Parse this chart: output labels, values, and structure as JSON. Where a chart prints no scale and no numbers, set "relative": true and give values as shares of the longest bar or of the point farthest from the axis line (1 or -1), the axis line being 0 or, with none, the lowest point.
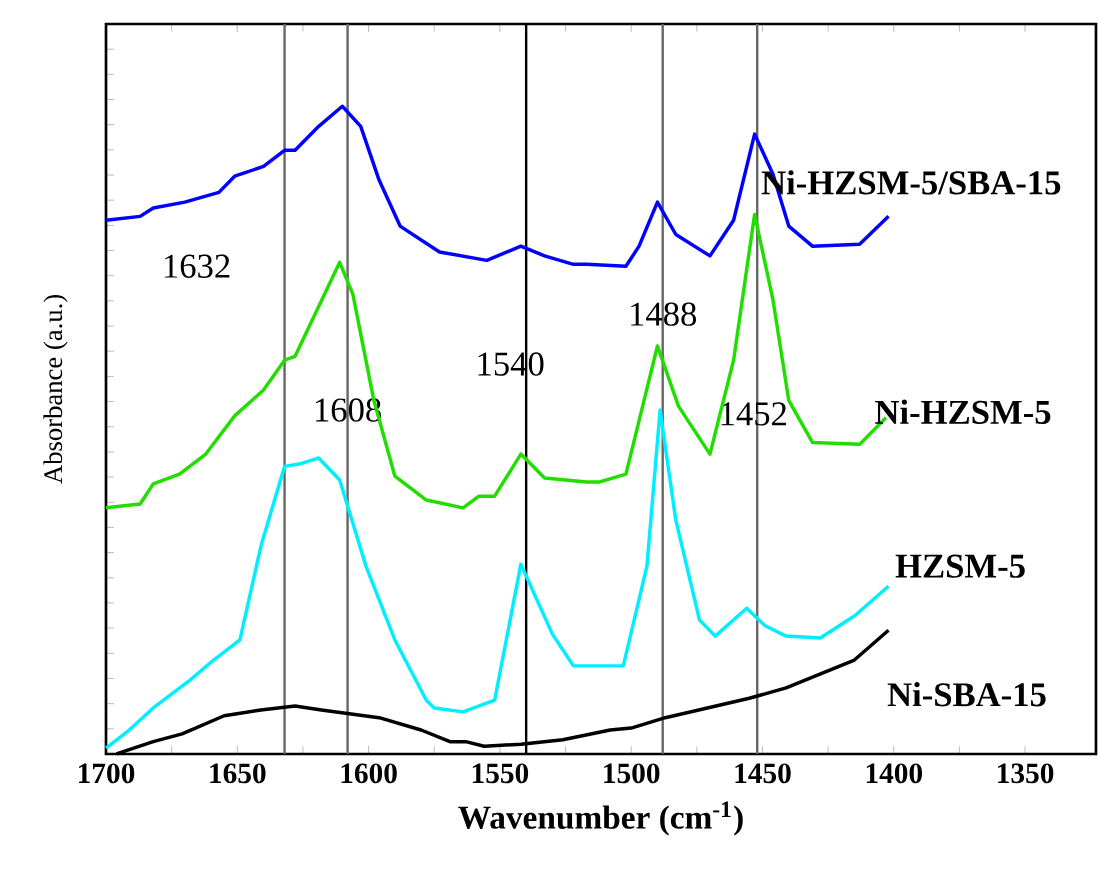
{
  "chart_data": {
    "type": "line",
    "relative": true,
    "xlabel": "Wavenumber (cm$^{-1}$)",
    "ylabel": "Absorbance (a.u.)",
    "xlim": [
      1700,
      1323
    ],
    "xticks": [
      1700,
      1650,
      1600,
      1550,
      1500,
      1450,
      1400,
      1350
    ],
    "grid": false,
    "marker": "none",
    "line_style": "solid",
    "ref_lines": [
      {
        "axis": "x",
        "value": 1632,
        "label": "1632",
        "color": "#666666"
      },
      {
        "axis": "x",
        "value": 1608,
        "label": "1608",
        "color": "#666666"
      },
      {
        "axis": "x",
        "value": 1540,
        "label": "1540",
        "color": "#000000"
      },
      {
        "axis": "x",
        "value": 1488,
        "label": "1488",
        "color": "#666666"
      },
      {
        "axis": "x",
        "value": 1452,
        "label": "1452",
        "color": "#666666"
      }
    ],
    "series": [
      {
        "name": "Ni-HZSM-5/SBA-15",
        "color": "#0000ff",
        "x": [
          1700,
          1687,
          1682,
          1670,
          1657,
          1651,
          1640,
          1632,
          1628,
          1619,
          1610,
          1603,
          1596,
          1588,
          1573,
          1555,
          1542,
          1533,
          1522,
          1517,
          1502,
          1497,
          1490,
          1483,
          1470,
          1461,
          1453,
          1446,
          1440,
          1431,
          1413,
          1402
        ],
        "values": [
          0.824,
          0.83,
          0.843,
          0.852,
          0.867,
          0.892,
          0.907,
          0.932,
          0.932,
          0.969,
          1.0,
          0.969,
          0.886,
          0.815,
          0.775,
          0.762,
          0.784,
          0.769,
          0.756,
          0.756,
          0.753,
          0.784,
          0.852,
          0.802,
          0.769,
          0.824,
          0.957,
          0.895,
          0.815,
          0.784,
          0.787,
          0.83
        ]
      },
      {
        "name": "Ni-HZSM-5",
        "color": "#22dd00",
        "x": [
          1700,
          1687,
          1682,
          1672,
          1662,
          1651,
          1640,
          1632,
          1628,
          1619,
          1611,
          1606,
          1598,
          1590,
          1578,
          1564,
          1558,
          1552,
          1542,
          1533,
          1517,
          1512,
          1502,
          1490,
          1482,
          1470,
          1461,
          1453,
          1446,
          1440,
          1431,
          1413,
          1403
        ],
        "values": [
          0.38,
          0.386,
          0.417,
          0.432,
          0.463,
          0.522,
          0.562,
          0.608,
          0.614,
          0.691,
          0.759,
          0.71,
          0.546,
          0.429,
          0.392,
          0.38,
          0.398,
          0.398,
          0.463,
          0.426,
          0.42,
          0.42,
          0.432,
          0.63,
          0.537,
          0.463,
          0.608,
          0.833,
          0.701,
          0.546,
          0.481,
          0.478,
          0.519
        ]
      },
      {
        "name": "HZSM-5",
        "color": "#00eeff",
        "x": [
          1700,
          1692,
          1682,
          1668,
          1659,
          1649,
          1641,
          1632,
          1626,
          1619,
          1611,
          1601,
          1590,
          1578,
          1575,
          1564,
          1552,
          1542,
          1530,
          1522,
          1512,
          1503,
          1494,
          1489,
          1483,
          1474,
          1468,
          1456,
          1449,
          1441,
          1428,
          1415,
          1402
        ],
        "values": [
          0.009,
          0.034,
          0.071,
          0.114,
          0.145,
          0.176,
          0.321,
          0.444,
          0.448,
          0.457,
          0.423,
          0.29,
          0.176,
          0.083,
          0.071,
          0.065,
          0.083,
          0.293,
          0.185,
          0.136,
          0.136,
          0.136,
          0.29,
          0.531,
          0.361,
          0.207,
          0.182,
          0.225,
          0.198,
          0.182,
          0.179,
          0.213,
          0.259
        ]
      },
      {
        "name": "Ni-SBA-15",
        "color": "#000000",
        "x": [
          1696,
          1682,
          1671,
          1655,
          1641,
          1628,
          1618,
          1596,
          1580,
          1569,
          1563,
          1556,
          1542,
          1526,
          1508,
          1500,
          1487,
          1455,
          1441,
          1415,
          1402
        ],
        "values": [
          0.0,
          0.019,
          0.031,
          0.059,
          0.068,
          0.074,
          0.068,
          0.056,
          0.037,
          0.019,
          0.019,
          0.012,
          0.015,
          0.022,
          0.037,
          0.04,
          0.056,
          0.086,
          0.102,
          0.145,
          0.191
        ]
      }
    ]
  }
}
